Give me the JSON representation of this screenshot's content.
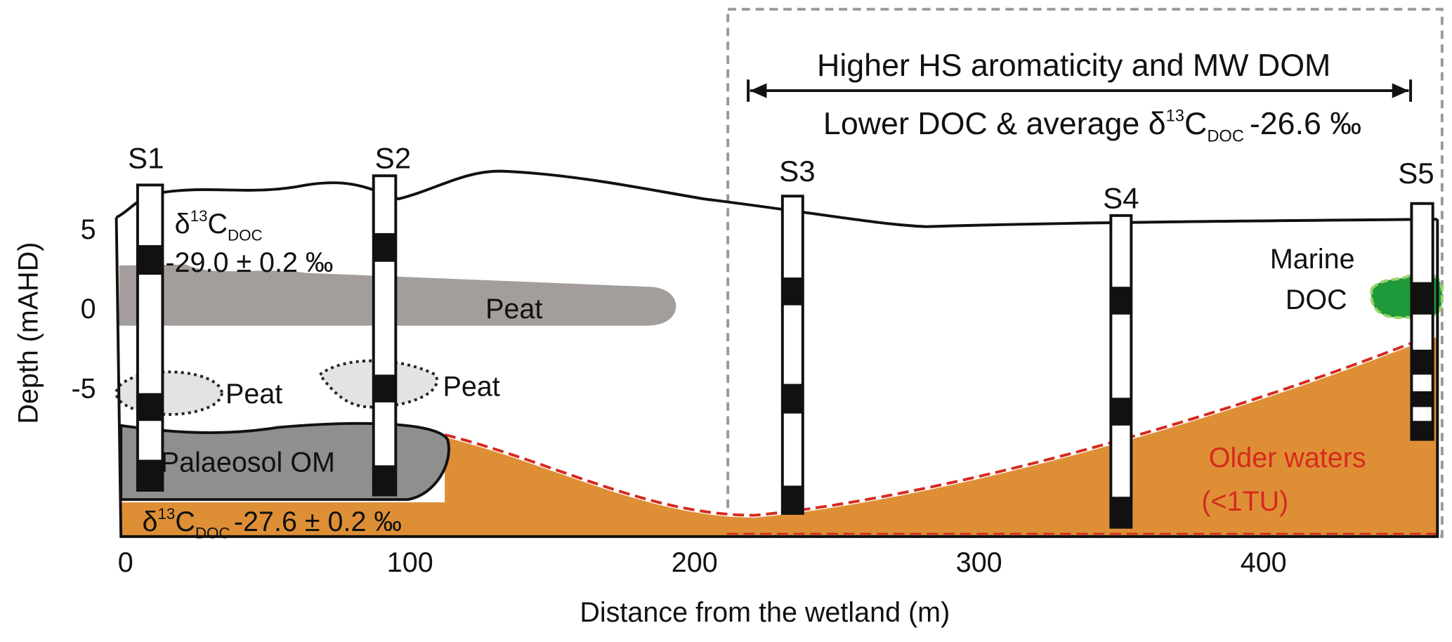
{
  "title": {
    "line1": "Higher HS aromaticity and MW DOM",
    "line2": {
      "prefix": "Lower DOC & average δ",
      "sup": "13",
      "base": "C",
      "sub": "DOC",
      "rest": "-26.6 ‰"
    }
  },
  "wells": [
    "S1",
    "S2",
    "S3",
    "S4",
    "S5"
  ],
  "annotations": {
    "s1_delta": {
      "prefix": "δ",
      "sup": "13",
      "base": "C",
      "sub": "DOC",
      "rest": "-29.0 ± 0.2 ‰"
    },
    "peat_upper": "Peat",
    "peat_lens_1": "Peat",
    "peat_lens_2": "Peat",
    "palaeosol": "Palaeosol OM",
    "basal_delta": {
      "prefix": "δ",
      "sup": "13",
      "base": "C",
      "sub": "DOC",
      "rest": "-27.6 ± 0.2 ‰"
    },
    "marine": [
      "Marine",
      "DOC"
    ],
    "older_waters": [
      "Older waters",
      "(<1TU)"
    ]
  },
  "x_axis": {
    "label": "Distance from the wetland (m)",
    "ticks": [
      0,
      100,
      200,
      300,
      400
    ]
  },
  "y_axis": {
    "label": "Depth (mAHD)",
    "ticks": [
      5,
      0,
      -5
    ]
  }
}
